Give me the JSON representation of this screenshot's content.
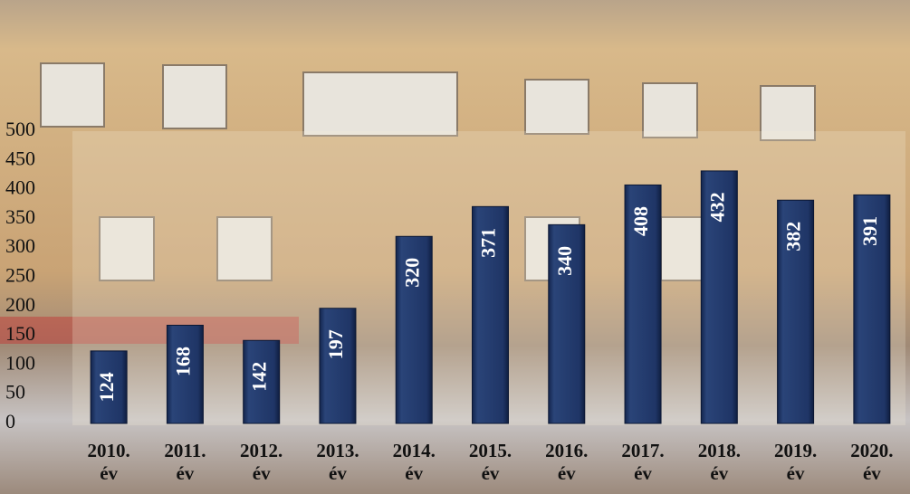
{
  "chart_data": {
    "type": "bar",
    "categories": [
      "2010. év",
      "2011. év",
      "2012. év",
      "2013. év",
      "2014. év",
      "2015. év",
      "2016. év",
      "2017. év",
      "2018. év",
      "2019. év",
      "2020. év"
    ],
    "values": [
      124,
      168,
      142,
      197,
      320,
      371,
      340,
      408,
      432,
      382,
      391
    ],
    "color": "#1f3566",
    "ylim": [
      0,
      500
    ],
    "yticks": [
      0,
      50,
      100,
      150,
      200,
      250,
      300,
      350,
      400,
      450,
      500
    ],
    "grid": false
  }
}
